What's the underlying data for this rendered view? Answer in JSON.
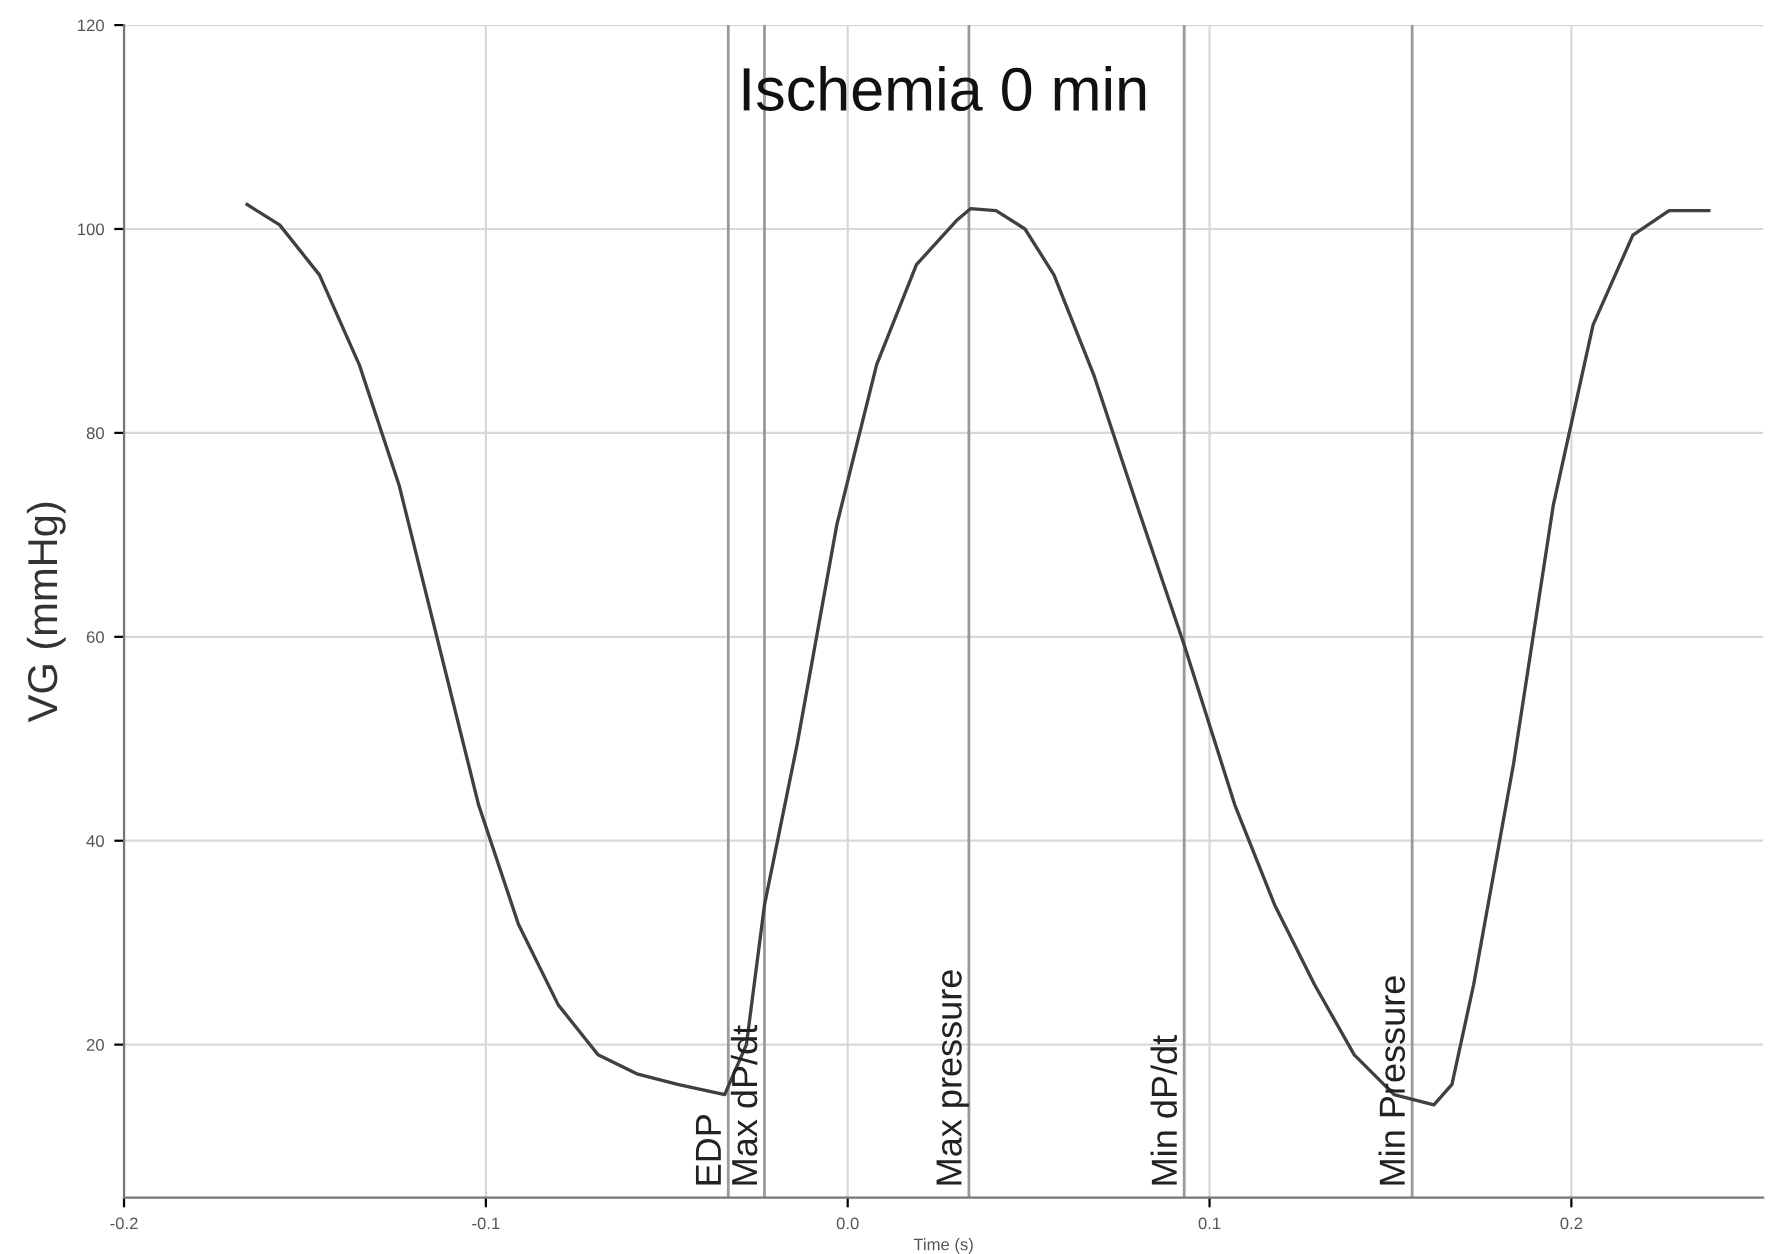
{
  "chart_data": {
    "type": "line",
    "title": "Ischemia 0 min",
    "xlabel": "Time (s)",
    "ylabel": "VG (mmHg)",
    "series": [
      {
        "color": "#404040",
        "x": [
          -0.166,
          -0.157,
          -0.146,
          -0.135,
          -0.124,
          -0.113,
          -0.102,
          -0.091,
          -0.08,
          -0.069,
          -0.058,
          -0.047,
          -0.034,
          -0.028,
          -0.023,
          -0.014,
          -0.003,
          0.008,
          0.019,
          0.03,
          0.034,
          0.041,
          0.049,
          0.057,
          0.068,
          0.079,
          0.093,
          0.107,
          0.118,
          0.129,
          0.14,
          0.151,
          0.162,
          0.167,
          0.173,
          0.184,
          0.195,
          0.206,
          0.217,
          0.227,
          0.238
        ],
        "values": [
          102.4,
          100.4,
          95.5,
          86.7,
          74.9,
          59.2,
          43.5,
          31.8,
          23.9,
          19.0,
          17.1,
          16.1,
          15.1,
          20.0,
          33.7,
          49.4,
          71.0,
          86.7,
          96.5,
          100.8,
          102.0,
          101.8,
          100.0,
          95.5,
          85.7,
          73.9,
          59.2,
          43.5,
          33.7,
          25.9,
          19.0,
          15.1,
          14.1,
          16.1,
          25.9,
          47.5,
          72.9,
          90.6,
          99.4,
          101.8,
          101.8
        ]
      }
    ],
    "xlim": [
      -0.2,
      0.253
    ],
    "ylim": [
      5,
      120
    ],
    "xticks": [
      -0.2,
      -0.1,
      {
        "value": 0,
        "label": "0.0"
      },
      0.1,
      0.2
    ],
    "yticks": [
      20,
      40,
      60,
      80,
      100,
      120
    ],
    "grid": true,
    "marker": "none",
    "line_style": "solid",
    "ref_lines": [
      {
        "axis": "x",
        "value": -0.033,
        "label": "EDP"
      },
      {
        "axis": "x",
        "value": -0.023,
        "label": "Max dP/dt"
      },
      {
        "axis": "x",
        "value": 0.0335,
        "label": "Max pressure"
      },
      {
        "axis": "x",
        "value": 0.093,
        "label": "Min dP/dt"
      },
      {
        "axis": "x",
        "value": 0.156,
        "label": "Min Pressure"
      }
    ]
  }
}
